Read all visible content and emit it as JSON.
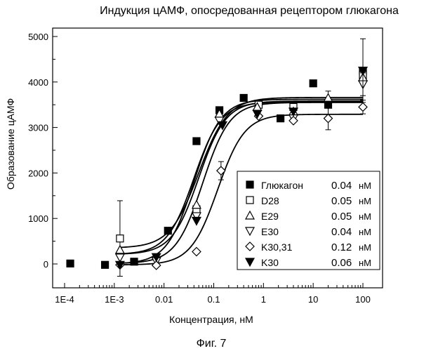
{
  "chart_data": {
    "type": "scatter",
    "title": "Индукция цАМФ, опосредованная рецептором глюкагона",
    "xlabel": "Концентрация, нМ",
    "ylabel": "Образование цАМФ",
    "x_scale": "log",
    "xlim": [
      0.0001,
      100
    ],
    "ylim": [
      0,
      5000
    ],
    "x_ticks": [
      {
        "value": 0.0001,
        "label": "1E-4"
      },
      {
        "value": 0.001,
        "label": "1E-3"
      },
      {
        "value": 0.01,
        "label": "0.01"
      },
      {
        "value": 0.1,
        "label": "0.1"
      },
      {
        "value": 1,
        "label": "1"
      },
      {
        "value": 10,
        "label": "10"
      },
      {
        "value": 100,
        "label": "100"
      }
    ],
    "y_ticks": [
      {
        "value": 0,
        "label": "0"
      },
      {
        "value": 1000,
        "label": "1000"
      },
      {
        "value": 2000,
        "label": "2000"
      },
      {
        "value": 3000,
        "label": "3000"
      },
      {
        "value": 4000,
        "label": "4000"
      },
      {
        "value": 5000,
        "label": "5000"
      }
    ],
    "grid": false,
    "legend_position": "bottom-right",
    "series": [
      {
        "name": "Глюкагон",
        "value": "0.04",
        "unit": "нМ",
        "marker": "square-filled",
        "fit": {
          "bottom": 0,
          "top": 3620,
          "ec50": 0.04,
          "hill": 1.6
        },
        "points": [
          {
            "x": 0.00013,
            "y": 10
          },
          {
            "x": 0.00065,
            "y": -20
          },
          {
            "x": 0.0025,
            "y": 50
          },
          {
            "x": 0.012,
            "y": 730
          },
          {
            "x": 0.045,
            "y": 2700
          },
          {
            "x": 0.13,
            "y": 3380
          },
          {
            "x": 0.4,
            "y": 3650
          },
          {
            "x": 2.2,
            "y": 3200
          },
          {
            "x": 10,
            "y": 3970
          },
          {
            "x": 20,
            "y": 3500
          },
          {
            "x": 100,
            "y": 4250
          }
        ]
      },
      {
        "name": "D28",
        "value": "0.05",
        "unit": "нМ",
        "marker": "square-open",
        "fit": {
          "bottom": 210,
          "top": 3580,
          "ec50": 0.05,
          "hill": 1.6
        },
        "points": [
          {
            "x": 0.0013,
            "y": 560,
            "err": 830
          },
          {
            "x": 0.045,
            "y": 1200
          },
          {
            "x": 0.8,
            "y": 3500
          },
          {
            "x": 4,
            "y": 3450
          },
          {
            "x": 100,
            "y": 4150
          }
        ]
      },
      {
        "name": "E29",
        "value": "0.05",
        "unit": "нМ",
        "marker": "triangle-up-open",
        "fit": {
          "bottom": 350,
          "top": 3660,
          "ec50": 0.05,
          "hill": 1.5
        },
        "points": [
          {
            "x": 0.0013,
            "y": 310
          },
          {
            "x": 0.045,
            "y": 1300
          },
          {
            "x": 0.13,
            "y": 3300
          },
          {
            "x": 0.75,
            "y": 3450
          },
          {
            "x": 4,
            "y": 3350
          },
          {
            "x": 20,
            "y": 3650,
            "err": 150
          },
          {
            "x": 100,
            "y": 4100
          }
        ]
      },
      {
        "name": "E30",
        "value": "0.04",
        "unit": "нМ",
        "marker": "triangle-down-open",
        "fit": {
          "bottom": 210,
          "top": 3560,
          "ec50": 0.04,
          "hill": 1.6
        },
        "points": [
          {
            "x": 0.0013,
            "y": 140
          },
          {
            "x": 0.007,
            "y": 60
          },
          {
            "x": 0.045,
            "y": 1050
          },
          {
            "x": 0.13,
            "y": 3150
          },
          {
            "x": 0.75,
            "y": 3300
          },
          {
            "x": 4,
            "y": 3200
          },
          {
            "x": 100,
            "y": 3950,
            "err": 250
          }
        ]
      },
      {
        "name": "K30,31",
        "value": "0.12",
        "unit": "нМ",
        "marker": "diamond-open",
        "fit": {
          "bottom": -20,
          "top": 3290,
          "ec50": 0.12,
          "hill": 1.6
        },
        "points": [
          {
            "x": 0.0013,
            "y": -20
          },
          {
            "x": 0.007,
            "y": -30
          },
          {
            "x": 0.045,
            "y": 270
          },
          {
            "x": 0.14,
            "y": 2050,
            "err": 200
          },
          {
            "x": 0.8,
            "y": 3250
          },
          {
            "x": 4,
            "y": 3150
          },
          {
            "x": 20,
            "y": 3200,
            "err": 250
          },
          {
            "x": 100,
            "y": 3450,
            "err": 150
          }
        ]
      },
      {
        "name": "K30",
        "value": "0.06",
        "unit": "нМ",
        "marker": "triangle-down-filled",
        "fit": {
          "bottom": 10,
          "top": 3550,
          "ec50": 0.06,
          "hill": 1.6
        },
        "points": [
          {
            "x": 0.0013,
            "y": -20
          },
          {
            "x": 0.007,
            "y": 150
          },
          {
            "x": 0.045,
            "y": 950
          },
          {
            "x": 0.15,
            "y": 3050
          },
          {
            "x": 0.75,
            "y": 3300
          },
          {
            "x": 4,
            "y": 3350
          },
          {
            "x": 20,
            "y": 3500
          },
          {
            "x": 100,
            "y": 4250,
            "err": 700
          }
        ]
      }
    ]
  },
  "caption": "Фиг. 7"
}
